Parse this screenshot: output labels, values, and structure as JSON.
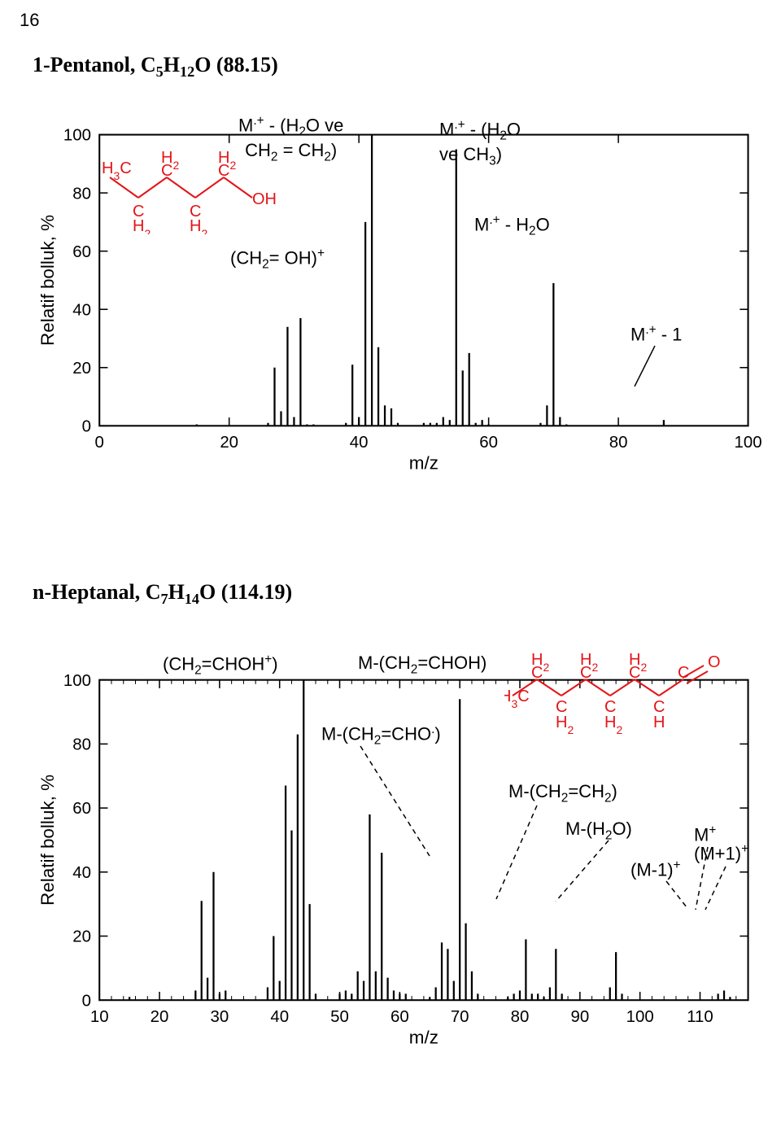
{
  "page_number": "16",
  "title1": {
    "compound": "1-Pentanol",
    "formula_html": "C<sub class='sm'>5</sub>H<sub class='sm'>12</sub>O",
    "mw": "(88.15)"
  },
  "title2": {
    "compound": "n-Heptanal",
    "formula_html": "C<sub class='sm'>7</sub>H<sub class='sm'>14</sub>O",
    "mw": "(114.19)"
  },
  "chart1": {
    "type": "bar",
    "x_label": "m/z",
    "y_label": "Relatif bolluk, %",
    "x_lim": [
      0,
      100
    ],
    "y_lim": [
      0,
      100
    ],
    "x_ticks": [
      0,
      20,
      40,
      60,
      80,
      100
    ],
    "y_ticks": [
      0,
      20,
      40,
      60,
      80,
      100
    ],
    "axis_color": "#000000",
    "bar_color": "#000000",
    "label_fontsize": 22,
    "tick_fontsize": 20,
    "bars": [
      {
        "x": 15,
        "y": 0.5
      },
      {
        "x": 26,
        "y": 1
      },
      {
        "x": 27,
        "y": 20
      },
      {
        "x": 28,
        "y": 5
      },
      {
        "x": 29,
        "y": 34
      },
      {
        "x": 30,
        "y": 3
      },
      {
        "x": 31,
        "y": 37
      },
      {
        "x": 32,
        "y": 0.5
      },
      {
        "x": 33,
        "y": 0.5
      },
      {
        "x": 38,
        "y": 1
      },
      {
        "x": 39,
        "y": 21
      },
      {
        "x": 40,
        "y": 3
      },
      {
        "x": 41,
        "y": 70
      },
      {
        "x": 42,
        "y": 100
      },
      {
        "x": 43,
        "y": 27
      },
      {
        "x": 44,
        "y": 7
      },
      {
        "x": 45,
        "y": 6
      },
      {
        "x": 46,
        "y": 1
      },
      {
        "x": 50,
        "y": 1
      },
      {
        "x": 51,
        "y": 1
      },
      {
        "x": 52,
        "y": 1
      },
      {
        "x": 53,
        "y": 3
      },
      {
        "x": 54,
        "y": 2
      },
      {
        "x": 55,
        "y": 95
      },
      {
        "x": 56,
        "y": 19
      },
      {
        "x": 57,
        "y": 25
      },
      {
        "x": 58,
        "y": 1
      },
      {
        "x": 59,
        "y": 2
      },
      {
        "x": 60,
        "y": 0.5
      },
      {
        "x": 68,
        "y": 1
      },
      {
        "x": 69,
        "y": 7
      },
      {
        "x": 70,
        "y": 49
      },
      {
        "x": 71,
        "y": 3
      },
      {
        "x": 72,
        "y": 0.5
      },
      {
        "x": 87,
        "y": 2
      }
    ]
  },
  "chart2": {
    "type": "bar",
    "x_label": "m/z",
    "y_label": "Relatif bolluk, %",
    "x_lim": [
      10,
      118
    ],
    "y_lim": [
      0,
      100
    ],
    "x_ticks": [
      10,
      20,
      30,
      40,
      50,
      60,
      70,
      80,
      90,
      100,
      110
    ],
    "y_ticks": [
      0,
      20,
      40,
      60,
      80,
      100
    ],
    "axis_color": "#000000",
    "bar_color": "#000000",
    "label_fontsize": 22,
    "tick_fontsize": 20,
    "bars": [
      {
        "x": 15,
        "y": 1
      },
      {
        "x": 26,
        "y": 3
      },
      {
        "x": 27,
        "y": 31
      },
      {
        "x": 28,
        "y": 7
      },
      {
        "x": 29,
        "y": 40
      },
      {
        "x": 30,
        "y": 2
      },
      {
        "x": 31,
        "y": 3
      },
      {
        "x": 38,
        "y": 4
      },
      {
        "x": 39,
        "y": 20
      },
      {
        "x": 40,
        "y": 6
      },
      {
        "x": 41,
        "y": 67
      },
      {
        "x": 42,
        "y": 53
      },
      {
        "x": 43,
        "y": 83
      },
      {
        "x": 44,
        "y": 100
      },
      {
        "x": 45,
        "y": 30
      },
      {
        "x": 46,
        "y": 2
      },
      {
        "x": 50,
        "y": 2
      },
      {
        "x": 51,
        "y": 3
      },
      {
        "x": 52,
        "y": 2
      },
      {
        "x": 53,
        "y": 9
      },
      {
        "x": 54,
        "y": 6
      },
      {
        "x": 55,
        "y": 58
      },
      {
        "x": 56,
        "y": 9
      },
      {
        "x": 57,
        "y": 46
      },
      {
        "x": 58,
        "y": 7
      },
      {
        "x": 59,
        "y": 3
      },
      {
        "x": 60,
        "y": 2
      },
      {
        "x": 61,
        "y": 2
      },
      {
        "x": 65,
        "y": 1
      },
      {
        "x": 66,
        "y": 4
      },
      {
        "x": 67,
        "y": 18
      },
      {
        "x": 68,
        "y": 16
      },
      {
        "x": 69,
        "y": 6
      },
      {
        "x": 70,
        "y": 94
      },
      {
        "x": 71,
        "y": 24
      },
      {
        "x": 72,
        "y": 9
      },
      {
        "x": 73,
        "y": 2
      },
      {
        "x": 78,
        "y": 1
      },
      {
        "x": 79,
        "y": 2
      },
      {
        "x": 80,
        "y": 3
      },
      {
        "x": 81,
        "y": 19
      },
      {
        "x": 82,
        "y": 2
      },
      {
        "x": 83,
        "y": 2
      },
      {
        "x": 84,
        "y": 1
      },
      {
        "x": 85,
        "y": 4
      },
      {
        "x": 86,
        "y": 16
      },
      {
        "x": 87,
        "y": 2
      },
      {
        "x": 95,
        "y": 4
      },
      {
        "x": 96,
        "y": 15
      },
      {
        "x": 97,
        "y": 2
      },
      {
        "x": 113,
        "y": 2
      },
      {
        "x": 114,
        "y": 3
      },
      {
        "x": 115,
        "y": 1
      }
    ]
  },
  "mol1_color": "#e31518",
  "mol2_color": "#e31518",
  "dash_color": "#000000"
}
